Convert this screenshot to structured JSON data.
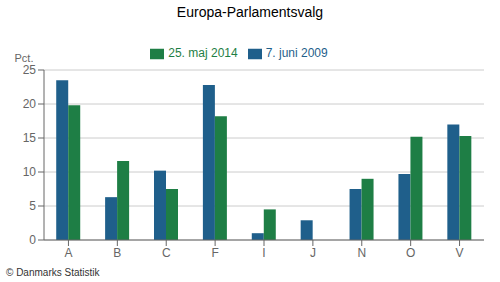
{
  "chart_data": {
    "type": "bar",
    "title": "Europa-Parlamentsvalg",
    "ylabel": "Pct.",
    "footnote": "© Danmarks Statistik",
    "categories": [
      "A",
      "B",
      "C",
      "F",
      "I",
      "J",
      "N",
      "O",
      "V"
    ],
    "series": [
      {
        "name": "7. juni 2009",
        "color": "#1f5f8b",
        "values": [
          23.5,
          6.3,
          10.2,
          22.8,
          1.0,
          2.9,
          7.5,
          9.7,
          17.0
        ]
      },
      {
        "name": "25. maj 2014",
        "color": "#1e7e45",
        "values": [
          19.8,
          11.6,
          7.5,
          18.2,
          4.5,
          0.0,
          9.0,
          15.2,
          15.3
        ]
      }
    ],
    "ylim": [
      0,
      25
    ],
    "yticks": [
      0,
      5,
      10,
      15,
      20,
      25
    ],
    "grid": true,
    "legend": "top"
  }
}
